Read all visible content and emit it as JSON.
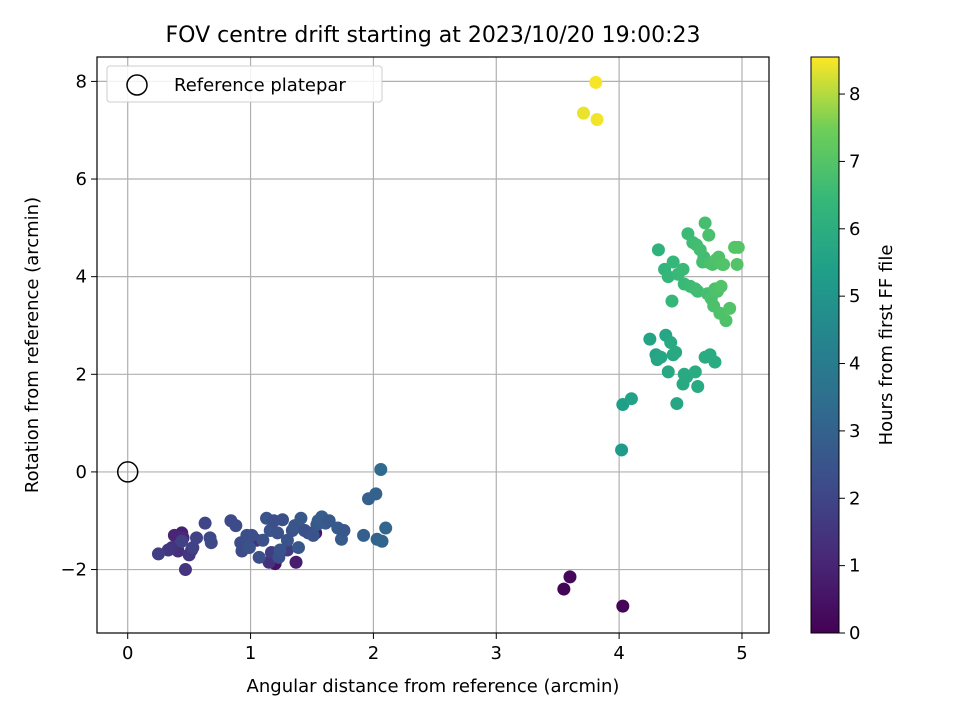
{
  "chart_data": {
    "type": "scatter",
    "title": "FOV centre drift starting at 2023/10/20 19:00:23",
    "xlabel": "Angular distance from reference (arcmin)",
    "ylabel": "Rotation from reference (arcmin)",
    "xlim": [
      -0.25,
      5.22
    ],
    "ylim": [
      -3.3,
      8.5
    ],
    "x_ticks": [
      0,
      1,
      2,
      3,
      4,
      5
    ],
    "y_ticks": [
      -2,
      0,
      2,
      4,
      6,
      8
    ],
    "x_tick_labels": [
      "0",
      "1",
      "2",
      "3",
      "4",
      "5"
    ],
    "y_tick_labels": [
      "−2",
      "0",
      "2",
      "4",
      "6",
      "8"
    ],
    "grid": true,
    "legend": {
      "placement": "top-left",
      "entries": [
        "Reference platepar"
      ]
    },
    "reference_point": {
      "x": 0,
      "y": 0,
      "label": "Reference platepar"
    },
    "colorbar": {
      "label": "Hours from first FF file",
      "colormap": "viridis",
      "range": [
        0,
        8.55
      ],
      "ticks": [
        0,
        1,
        2,
        3,
        4,
        5,
        6,
        7,
        8
      ],
      "tick_labels": [
        "0",
        "1",
        "2",
        "3",
        "4",
        "5",
        "6",
        "7",
        "8"
      ]
    },
    "series": [
      {
        "x": [
          3.55,
          3.6,
          4.03,
          1.2,
          1.53,
          1.37,
          0.44,
          0.38,
          0.45,
          0.52,
          0.41,
          1.05,
          1.15,
          0.36,
          0.47,
          0.33,
          0.5,
          1.3,
          1.17,
          1.44,
          0.25,
          0.44,
          0.53,
          0.56,
          0.63,
          0.67,
          0.68,
          0.84,
          0.88,
          0.92,
          0.97,
          1.01,
          1.07,
          1.1,
          1.13,
          1.16,
          1.19,
          1.22,
          1.26,
          1.3,
          1.34,
          1.36,
          1.39,
          1.41,
          1.44,
          1.47,
          1.51,
          1.54,
          0.93,
          0.99,
          1.23,
          1.24,
          1.55,
          1.58,
          1.61,
          1.64,
          1.71,
          1.74,
          1.76,
          1.92,
          1.96,
          2.02,
          2.03,
          2.07,
          2.1,
          2.06
        ],
        "y": [
          -2.4,
          -2.15,
          -2.75,
          -1.88,
          -1.25,
          -1.85,
          -1.25,
          -1.3,
          -1.35,
          -1.6,
          -1.62,
          -1.4,
          -1.85,
          -1.55,
          -2.0,
          -1.6,
          -1.7,
          -1.6,
          -1.65,
          -1.2,
          -1.68,
          -1.42,
          -1.55,
          -1.35,
          -1.05,
          -1.35,
          -1.45,
          -1.0,
          -1.1,
          -1.45,
          -1.3,
          -1.3,
          -1.75,
          -1.4,
          -0.95,
          -1.2,
          -1.0,
          -1.25,
          -0.98,
          -1.4,
          -1.2,
          -1.1,
          -1.55,
          -0.95,
          -1.2,
          -1.25,
          -1.3,
          -1.08,
          -1.62,
          -1.55,
          -1.75,
          -1.6,
          -1.0,
          -0.92,
          -1.05,
          -1.0,
          -1.15,
          -1.38,
          -1.2,
          -1.3,
          -0.55,
          -0.45,
          -1.38,
          -1.42,
          -1.15,
          0.05
        ],
        "hours": [
          0.1,
          0.2,
          0.15,
          0.5,
          0.6,
          0.8,
          0.9,
          1.0,
          1.1,
          1.2,
          1.3,
          1.35,
          1.4,
          1.45,
          1.5,
          1.55,
          1.6,
          1.65,
          1.7,
          1.6,
          1.8,
          1.85,
          1.9,
          1.95,
          2.0,
          2.05,
          2.1,
          2.15,
          2.2,
          2.25,
          2.3,
          2.3,
          2.35,
          2.4,
          2.45,
          2.5,
          2.3,
          2.4,
          2.35,
          2.45,
          2.5,
          2.55,
          2.6,
          2.65,
          2.4,
          2.3,
          2.5,
          2.6,
          2.2,
          2.4,
          2.3,
          2.5,
          2.7,
          2.8,
          2.75,
          2.6,
          2.7,
          2.75,
          2.6,
          2.9,
          2.95,
          3.0,
          3.0,
          3.1,
          3.15,
          3.3
        ]
      },
      {
        "x": [
          4.02,
          4.03,
          4.1,
          4.25,
          4.3,
          4.31,
          4.34,
          4.38,
          4.4,
          4.42,
          4.44,
          4.46,
          4.47,
          4.52,
          4.53,
          4.55,
          4.64,
          4.62,
          4.7,
          4.74,
          4.78
        ],
        "y": [
          0.45,
          1.38,
          1.5,
          2.72,
          2.4,
          2.3,
          2.35,
          2.8,
          2.05,
          2.65,
          2.4,
          2.45,
          1.4,
          1.8,
          2.0,
          1.95,
          1.75,
          2.05,
          2.35,
          2.4,
          2.25
        ],
        "hours": [
          5.2,
          5.4,
          5.5,
          5.6,
          5.6,
          5.65,
          5.7,
          5.7,
          5.75,
          5.8,
          5.75,
          5.8,
          5.7,
          5.8,
          5.85,
          5.8,
          5.85,
          5.9,
          5.9,
          5.95,
          5.9
        ]
      },
      {
        "x": [
          4.32,
          4.37,
          4.4,
          4.43,
          4.44,
          4.48,
          4.52,
          4.53,
          4.56,
          4.58,
          4.6,
          4.62,
          4.63,
          4.64,
          4.66,
          4.68,
          4.69,
          4.7,
          4.72,
          4.73,
          4.74,
          4.75,
          4.76,
          4.77,
          4.78,
          4.79,
          4.8,
          4.81,
          4.82,
          4.83,
          4.84,
          4.85,
          4.87,
          4.9,
          4.94,
          4.96,
          4.97
        ],
        "y": [
          4.55,
          4.15,
          4.0,
          3.5,
          4.3,
          4.05,
          4.15,
          3.85,
          4.88,
          3.8,
          4.7,
          3.75,
          4.65,
          3.7,
          4.55,
          4.3,
          4.4,
          5.1,
          3.65,
          4.85,
          4.28,
          3.55,
          4.25,
          3.4,
          3.75,
          4.35,
          3.7,
          4.4,
          3.25,
          3.8,
          4.25,
          4.25,
          3.1,
          3.35,
          4.6,
          4.25,
          4.6
        ],
        "hours": [
          6.2,
          6.3,
          6.35,
          6.4,
          6.4,
          6.45,
          6.5,
          6.5,
          6.55,
          6.55,
          6.6,
          6.6,
          6.65,
          6.65,
          6.7,
          6.7,
          6.7,
          6.75,
          6.75,
          6.8,
          6.8,
          6.8,
          6.85,
          6.85,
          6.85,
          6.9,
          6.9,
          6.9,
          6.9,
          6.95,
          6.95,
          6.95,
          6.9,
          6.95,
          7.0,
          6.95,
          7.0
        ]
      },
      {
        "x": [
          3.71,
          3.81,
          3.82
        ],
        "y": [
          7.35,
          7.98,
          7.22
        ],
        "hours": [
          8.4,
          8.5,
          8.45
        ]
      }
    ]
  }
}
